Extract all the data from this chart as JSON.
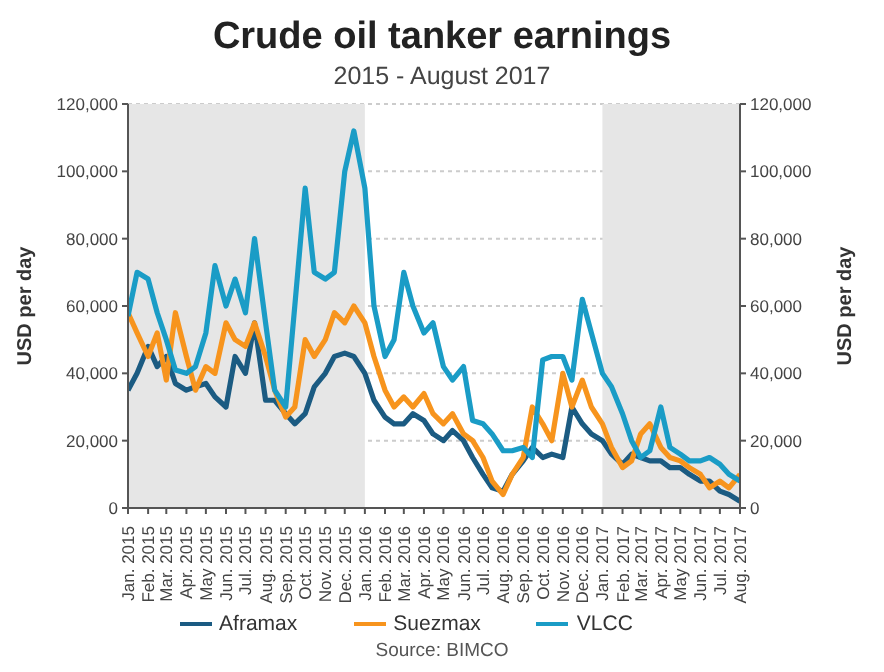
{
  "chart_data": {
    "type": "line",
    "title": "Crude oil tanker earnings",
    "subtitle": "2015 - August 2017",
    "ylabel": "USD per day",
    "y2label": "USD per day",
    "annotations": [
      "Source: BIMCO"
    ],
    "x": [
      "2015-01-01",
      "2015-01-15",
      "2015-02-01",
      "2015-02-15",
      "2015-03-01",
      "2015-03-15",
      "2015-04-01",
      "2015-04-15",
      "2015-05-01",
      "2015-05-15",
      "2015-06-01",
      "2015-06-15",
      "2015-07-01",
      "2015-07-15",
      "2015-08-01",
      "2015-08-15",
      "2015-09-01",
      "2015-09-15",
      "2015-10-01",
      "2015-10-15",
      "2015-11-01",
      "2015-11-15",
      "2015-12-01",
      "2015-12-15",
      "2016-01-01",
      "2016-01-15",
      "2016-02-01",
      "2016-02-15",
      "2016-03-01",
      "2016-03-15",
      "2016-04-01",
      "2016-04-15",
      "2016-05-01",
      "2016-05-15",
      "2016-06-01",
      "2016-06-15",
      "2016-07-01",
      "2016-07-15",
      "2016-08-01",
      "2016-08-15",
      "2016-09-01",
      "2016-09-15",
      "2016-10-01",
      "2016-10-15",
      "2016-11-01",
      "2016-11-15",
      "2016-12-01",
      "2016-12-15",
      "2017-01-01",
      "2017-01-15",
      "2017-02-01",
      "2017-02-15",
      "2017-03-01",
      "2017-03-15",
      "2017-04-01",
      "2017-04-15",
      "2017-05-01",
      "2017-05-15",
      "2017-06-01",
      "2017-06-15",
      "2017-07-01",
      "2017-07-15",
      "2017-08-01"
    ],
    "series": [
      {
        "name": "Aframax",
        "color": "#1b5b82",
        "values": [
          35000,
          40000,
          48000,
          42000,
          45000,
          37000,
          35000,
          36000,
          37000,
          33000,
          30000,
          45000,
          40000,
          55000,
          32000,
          32000,
          28000,
          25000,
          28000,
          36000,
          40000,
          45000,
          46000,
          45000,
          40000,
          32000,
          27000,
          25000,
          25000,
          28000,
          26000,
          22000,
          20000,
          23000,
          20000,
          15000,
          10000,
          6000,
          5000,
          10000,
          14000,
          18000,
          15000,
          16000,
          15000,
          30000,
          25000,
          22000,
          20000,
          16000,
          13000,
          16000,
          15000,
          14000,
          14000,
          12000,
          12000,
          10000,
          8000,
          8000,
          5000,
          4000,
          2000
        ]
      },
      {
        "name": "Suezmax",
        "color": "#f7941d",
        "values": [
          58000,
          52000,
          45000,
          52000,
          38000,
          58000,
          45000,
          35000,
          42000,
          40000,
          55000,
          50000,
          48000,
          55000,
          45000,
          35000,
          27000,
          30000,
          50000,
          45000,
          50000,
          58000,
          55000,
          60000,
          55000,
          45000,
          35000,
          30000,
          33000,
          30000,
          34000,
          28000,
          25000,
          28000,
          22000,
          20000,
          15000,
          8000,
          4000,
          10000,
          15000,
          30000,
          25000,
          20000,
          40000,
          30000,
          38000,
          30000,
          25000,
          18000,
          12000,
          14000,
          22000,
          25000,
          18000,
          15000,
          14000,
          12000,
          10000,
          6000,
          8000,
          6000,
          10000
        ]
      },
      {
        "name": "VLCC",
        "color": "#1a9cc6",
        "values": [
          57000,
          70000,
          68000,
          58000,
          50000,
          41000,
          40000,
          42000,
          52000,
          72000,
          60000,
          68000,
          58000,
          80000,
          55000,
          35000,
          30000,
          60000,
          95000,
          70000,
          68000,
          70000,
          100000,
          112000,
          95000,
          60000,
          45000,
          50000,
          70000,
          60000,
          52000,
          55000,
          42000,
          38000,
          42000,
          26000,
          25000,
          22000,
          17000,
          17000,
          18000,
          15000,
          44000,
          45000,
          45000,
          38000,
          62000,
          52000,
          40000,
          36000,
          28000,
          20000,
          15000,
          17000,
          30000,
          18000,
          16000,
          14000,
          14000,
          15000,
          13000,
          10000,
          8000
        ]
      }
    ],
    "xlim": [
      "2015-01-01",
      "2017-08-01"
    ],
    "xticks": [
      {
        "value": "2015-01-01",
        "label": "Jan. 2015"
      },
      {
        "value": "2015-02-01",
        "label": "Feb. 2015"
      },
      {
        "value": "2015-03-01",
        "label": "Mar. 2015"
      },
      {
        "value": "2015-04-01",
        "label": "Apr. 2015"
      },
      {
        "value": "2015-05-01",
        "label": "May 2015"
      },
      {
        "value": "2015-06-01",
        "label": "Jun. 2015"
      },
      {
        "value": "2015-07-01",
        "label": "Jul. 2015"
      },
      {
        "value": "2015-08-01",
        "label": "Aug. 2015"
      },
      {
        "value": "2015-09-01",
        "label": "Sep. 2015"
      },
      {
        "value": "2015-10-01",
        "label": "Oct. 2015"
      },
      {
        "value": "2015-11-01",
        "label": "Nov. 2015"
      },
      {
        "value": "2015-12-01",
        "label": "Dec. 2015"
      },
      {
        "value": "2016-01-01",
        "label": "Jan. 2016"
      },
      {
        "value": "2016-02-01",
        "label": "Feb. 2016"
      },
      {
        "value": "2016-03-01",
        "label": "Mar. 2016"
      },
      {
        "value": "2016-04-01",
        "label": "Apr. 2016"
      },
      {
        "value": "2016-05-01",
        "label": "May 2016"
      },
      {
        "value": "2016-06-01",
        "label": "Jun. 2016"
      },
      {
        "value": "2016-07-01",
        "label": "Jul. 2016"
      },
      {
        "value": "2016-08-01",
        "label": "Aug. 2016"
      },
      {
        "value": "2016-09-01",
        "label": "Sep. 2016"
      },
      {
        "value": "2016-10-01",
        "label": "Oct. 2016"
      },
      {
        "value": "2016-11-01",
        "label": "Nov. 2016"
      },
      {
        "value": "2016-12-01",
        "label": "Dec. 2016"
      },
      {
        "value": "2017-01-01",
        "label": "Jan. 2017"
      },
      {
        "value": "2017-02-01",
        "label": "Feb. 2017"
      },
      {
        "value": "2017-03-01",
        "label": "Mar. 2017"
      },
      {
        "value": "2017-04-01",
        "label": "Apr. 2017"
      },
      {
        "value": "2017-05-01",
        "label": "May 2017"
      },
      {
        "value": "2017-06-01",
        "label": "Jun. 2017"
      },
      {
        "value": "2017-07-01",
        "label": "Jul. 2017"
      },
      {
        "value": "2017-08-01",
        "label": "Aug. 2017"
      }
    ],
    "ylim": [
      0,
      120000
    ],
    "yticks": [
      0,
      {
        "value": 20000,
        "label": "20,000"
      },
      {
        "value": 40000,
        "label": "40,000"
      },
      {
        "value": 60000,
        "label": "60,000"
      },
      {
        "value": 80000,
        "label": "80,000"
      },
      {
        "value": 100000,
        "label": "100,000"
      },
      {
        "value": 120000,
        "label": "120,000"
      }
    ],
    "y2lim": [
      0,
      120000
    ],
    "y2ticks": [
      0,
      {
        "value": 20000,
        "label": "20,000"
      },
      {
        "value": 40000,
        "label": "40,000"
      },
      {
        "value": 60000,
        "label": "60,000"
      },
      {
        "value": 80000,
        "label": "80,000"
      },
      {
        "value": 100000,
        "label": "100,000"
      },
      {
        "value": 120000,
        "label": "120,000"
      }
    ],
    "bands": [
      {
        "axis": "x",
        "from": "2015-01-01",
        "to": "2016-01-01",
        "color": "#e6e6e6"
      },
      {
        "axis": "x",
        "from": "2017-01-01",
        "to": "2017-08-01",
        "color": "#e6e6e6"
      }
    ],
    "grid": "y",
    "legend": "bottom",
    "marker": "none",
    "line_style": "solid"
  }
}
